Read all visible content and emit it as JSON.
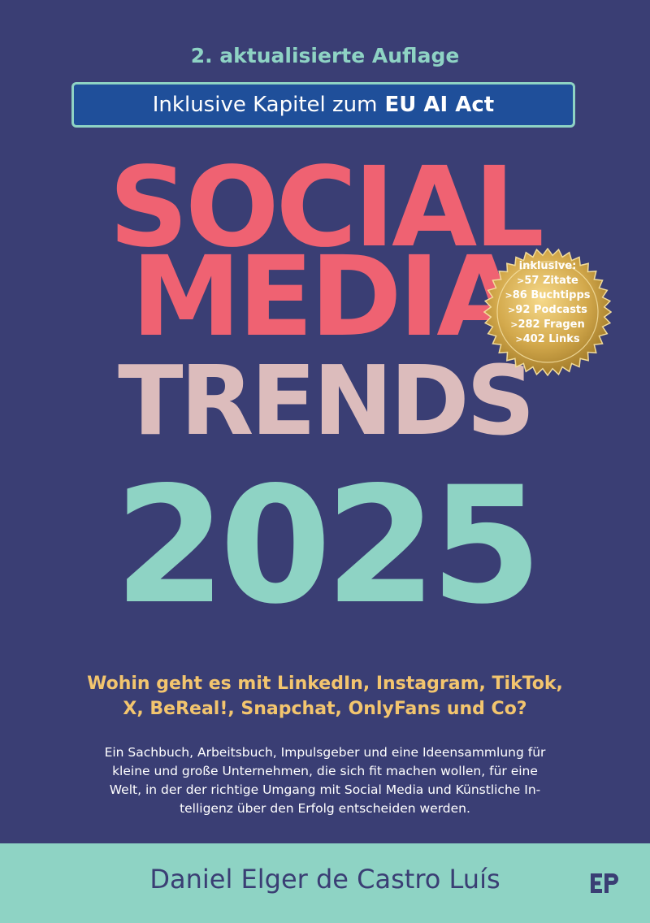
{
  "cover": {
    "edition": "2. aktualisierte Auflage",
    "ai_box": {
      "prefix": "Inklusive Kapitel zum",
      "highlight": "EU AI Act"
    },
    "title_lines": [
      "SOCIAL",
      "MEDIA",
      "TRENDS",
      "2025"
    ],
    "badge": {
      "title": "inklusive:",
      "items": [
        {
          "prefix": ">",
          "number": "57",
          "label": "Zitate"
        },
        {
          "prefix": ">",
          "number": "86",
          "label": "Buchtipps"
        },
        {
          "prefix": ">",
          "number": "92",
          "label": "Podcasts"
        },
        {
          "prefix": ">",
          "number": "282",
          "label": "Fragen"
        },
        {
          "prefix": ">",
          "number": "402",
          "label": "Links"
        }
      ]
    },
    "subtitle_lines": [
      "Wohin geht es mit LinkedIn, Instagram, TikTok,",
      "X, BeReal!, Snapchat, OnlyFans und Co?"
    ],
    "description_lines": [
      "Ein Sachbuch, Arbeitsbuch, Impulsgeber und eine Ideensammlung für",
      "kleine und große Unternehmen, die sich fit machen wollen, für eine",
      "Welt, in der der richtige Umgang mit Social Media und Künstliche In-",
      "telligenz über den Erfolg entscheiden werden."
    ],
    "author": "Daniel Elger de Castro Luís",
    "publisher_logo": "EP"
  },
  "colors": {
    "background": "#3a3e74",
    "coral": "#ef6272",
    "pink": "#dcbcbc",
    "mint": "#8ed3c4",
    "yellow": "#f3c56e",
    "box_blue": "#1f4f9a",
    "gold": "#c9a145"
  }
}
